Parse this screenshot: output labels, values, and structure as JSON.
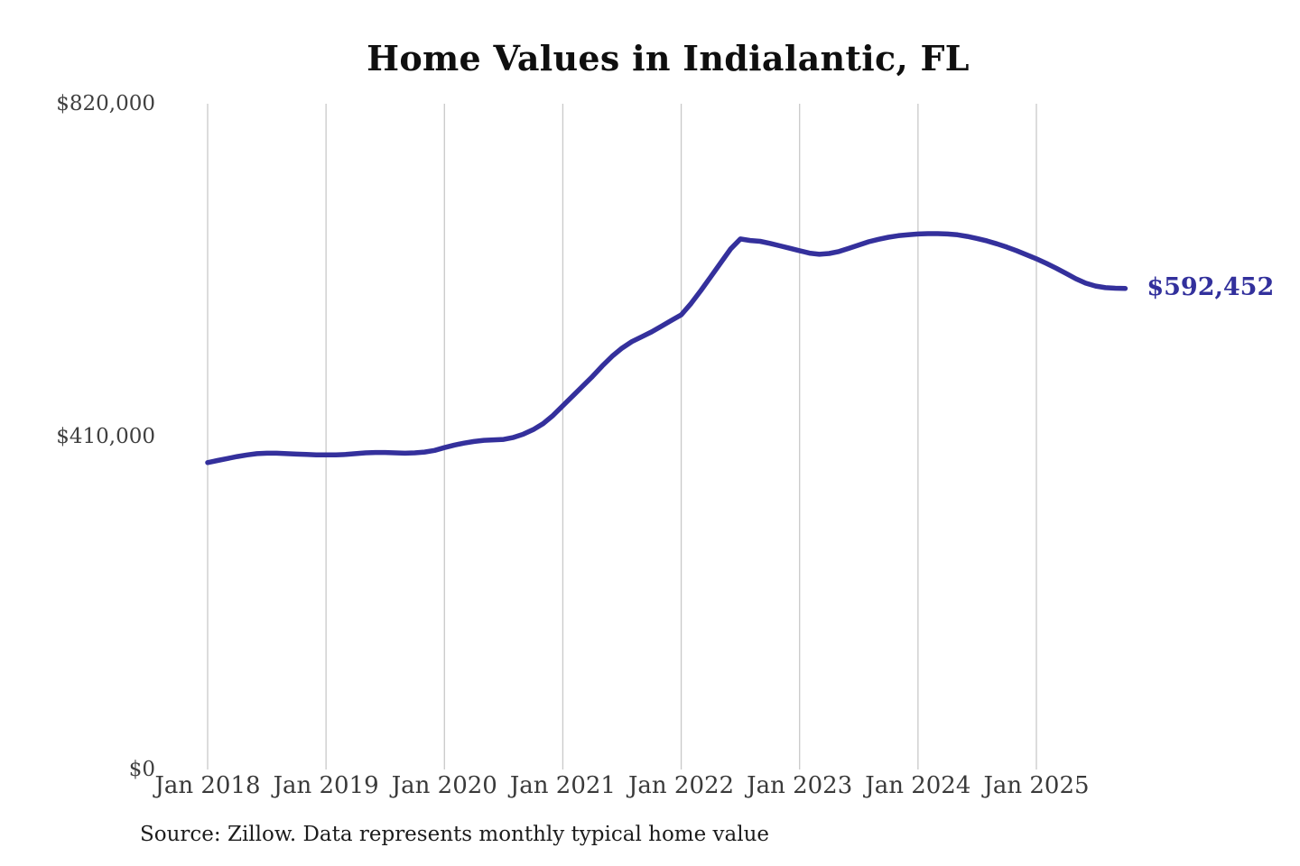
{
  "chart_data": {
    "type": "line",
    "title": "Home Values in Indialantic, FL",
    "source_note": "Source: Zillow. Data represents monthly typical home value",
    "series_name": "Monthly typical home value",
    "x_start": "Jan 2018",
    "x_interval": "month",
    "x_ticks": [
      "Jan 2018",
      "Jan 2019",
      "Jan 2020",
      "Jan 2021",
      "Jan 2022",
      "Jan 2023",
      "Jan 2024",
      "Jan 2025"
    ],
    "y_ticks": [
      {
        "value": 0,
        "label": "$0"
      },
      {
        "value": 410000,
        "label": "$410,000"
      },
      {
        "value": 820000,
        "label": "$820,000"
      }
    ],
    "ylim": [
      0,
      820000
    ],
    "grid": "vertical-only",
    "legend": "none",
    "end_label": "$592,452",
    "last_value": 592452,
    "colors": {
      "line": "#34309c",
      "grid": "#c9c9c9",
      "title": "#0f0f0f",
      "axis_text": "#3a3a3a",
      "end_label": "#32309c",
      "source_text": "#1c1c1c",
      "background": "#ffffff"
    },
    "values": [
      378000,
      380500,
      383000,
      385500,
      387500,
      389000,
      389500,
      389500,
      389000,
      388500,
      388000,
      387500,
      387500,
      387500,
      388000,
      389000,
      390000,
      390500,
      390500,
      390000,
      389500,
      390000,
      391000,
      393000,
      396500,
      399500,
      402000,
      404000,
      405500,
      406000,
      406500,
      409000,
      413000,
      418500,
      426000,
      436000,
      448000,
      460000,
      472000,
      484000,
      497000,
      509000,
      519000,
      527000,
      533000,
      539000,
      546000,
      553000,
      560000,
      574000,
      590000,
      607000,
      624000,
      641000,
      653500,
      651500,
      650500,
      648000,
      645000,
      642000,
      639000,
      636000,
      634500,
      635500,
      638000,
      642000,
      646000,
      650000,
      653000,
      655500,
      657500,
      658500,
      659500,
      660000,
      660000,
      659500,
      658500,
      656500,
      654000,
      651000,
      647500,
      643500,
      639000,
      634000,
      629000,
      623500,
      617500,
      611000,
      604500,
      599000,
      595500,
      593500,
      592800,
      592452
    ]
  }
}
